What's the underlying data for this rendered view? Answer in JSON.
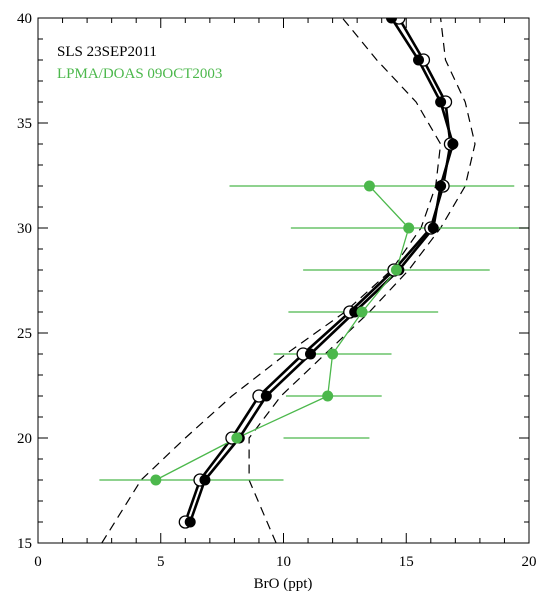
{
  "chart_data": {
    "type": "line",
    "xlabel": "BrO (ppt)",
    "ylabel": "",
    "xlim": [
      0,
      20
    ],
    "ylim": [
      15,
      40
    ],
    "x_ticks": [
      "0",
      "5",
      "10",
      "15",
      "20"
    ],
    "y_ticks": [
      "15",
      "20",
      "25",
      "30",
      "35",
      "40"
    ],
    "x_tick_values": [
      0,
      5,
      10,
      15,
      20
    ],
    "y_tick_values": [
      15,
      20,
      25,
      30,
      35,
      40
    ],
    "legend": [
      {
        "label": "SLS 23SEP2011",
        "color": "#000000"
      },
      {
        "label": "LPMA/DOAS 09OCT2003",
        "color": "#4cb84c"
      }
    ],
    "series": [
      {
        "name": "SLS 23SEP2011",
        "color": "#000000",
        "marker": "filled-circle",
        "x": [
          6.2,
          6.8,
          8.2,
          9.3,
          11.1,
          12.9,
          14.7,
          16.1,
          16.4,
          16.9,
          16.4,
          15.5,
          14.4
        ],
        "y": [
          16,
          18,
          20,
          22,
          24,
          26,
          28,
          30,
          32,
          34,
          36,
          38,
          40
        ]
      },
      {
        "name": "SLS 23SEP2011",
        "color": "#000000",
        "marker": "open-circle",
        "x": [
          6.0,
          6.6,
          7.9,
          9.0,
          10.8,
          12.7,
          14.5,
          16.0,
          16.5,
          16.8,
          16.6,
          15.7,
          14.7
        ],
        "y": [
          16,
          18,
          20,
          22,
          24,
          26,
          28,
          30,
          32,
          34,
          36,
          38,
          40
        ]
      },
      {
        "name": "LPMA/DOAS 09OCT2003",
        "color": "#4cb84c",
        "marker": "filled-circle",
        "x": [
          4.8,
          8.1,
          11.8,
          12.0,
          13.2,
          14.6,
          15.1,
          13.5
        ],
        "y": [
          18,
          20,
          22,
          24,
          26,
          28,
          30,
          32
        ],
        "xerr_low": [
          2.5,
          10.0,
          10.1,
          9.6,
          10.2,
          10.8,
          10.3,
          7.8
        ],
        "xerr_high": [
          10.0,
          13.5,
          14.0,
          14.4,
          16.3,
          18.4,
          20.0,
          19.4
        ]
      },
      {
        "name": "",
        "color": "#000000",
        "dashed": true,
        "x": [
          2.6,
          4.2,
          6.0,
          7.9,
          10.1,
          12.5,
          14.4,
          15.6,
          16.2,
          16.4,
          15.4,
          13.8,
          12.4
        ],
        "y": [
          15,
          18,
          20,
          22,
          24,
          26,
          28,
          30,
          32,
          34,
          36,
          38,
          40
        ]
      },
      {
        "name": "",
        "color": "#000000",
        "dashed": true,
        "x": [
          9.7,
          8.6,
          8.6,
          9.9,
          11.7,
          13.5,
          15.1,
          16.4,
          17.4,
          17.8,
          17.4,
          16.6,
          16.4
        ],
        "y": [
          15,
          18,
          20,
          22,
          24,
          26,
          28,
          30,
          32,
          34,
          36,
          38,
          40
        ]
      }
    ]
  }
}
